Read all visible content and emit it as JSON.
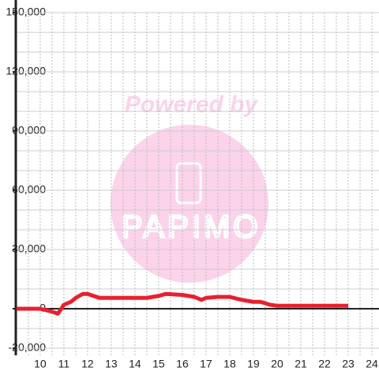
{
  "chart_data": {
    "type": "line",
    "watermark": {
      "text": "Powered by",
      "logo": "PAPIMO"
    },
    "x": [
      9,
      10,
      10.5,
      10.75,
      11,
      11.3,
      11.5,
      11.8,
      12,
      12.5,
      13,
      14,
      14.5,
      15,
      15.3,
      16,
      16.5,
      16.8,
      17,
      17.5,
      18,
      18.5,
      19,
      19.3,
      19.7,
      20,
      21,
      22,
      23
    ],
    "series": [
      {
        "color": "#e8202f",
        "values": [
          0,
          0,
          -1500,
          -2500,
          2000,
          3500,
          5500,
          7500,
          7500,
          5500,
          5500,
          5500,
          5500,
          6500,
          7500,
          7000,
          6000,
          4500,
          5500,
          6000,
          6000,
          4500,
          3500,
          3500,
          2000,
          1500,
          1500,
          1500,
          1500
        ]
      }
    ],
    "xlim": [
      8.97,
      24.3
    ],
    "xticks": [
      10,
      11,
      12,
      13,
      14,
      15,
      16,
      17,
      18,
      19,
      20,
      21,
      22,
      23,
      24
    ],
    "x_minor_grid": [
      9.5,
      10.5,
      11.5,
      12.5,
      13.5,
      14.5,
      15.5,
      16.5,
      17.5,
      18.5,
      19.5,
      20.5,
      21.5,
      22.5,
      23.5
    ],
    "ylim": [
      -23600,
      150000
    ],
    "yticks": [
      {
        "value": -20000,
        "label": "-20,000"
      },
      0,
      {
        "value": 30000,
        "label": "30,000"
      },
      {
        "value": 60000,
        "label": "60,000"
      },
      {
        "value": 90000,
        "label": "90,000"
      },
      {
        "value": 120000,
        "label": "120,000"
      },
      {
        "value": 150000,
        "label": "150,000"
      }
    ],
    "y_minor_grid": [
      -10000,
      10000,
      20000,
      40000,
      50000,
      70000,
      80000,
      100000,
      110000,
      130000,
      140000
    ],
    "grid": true
  }
}
